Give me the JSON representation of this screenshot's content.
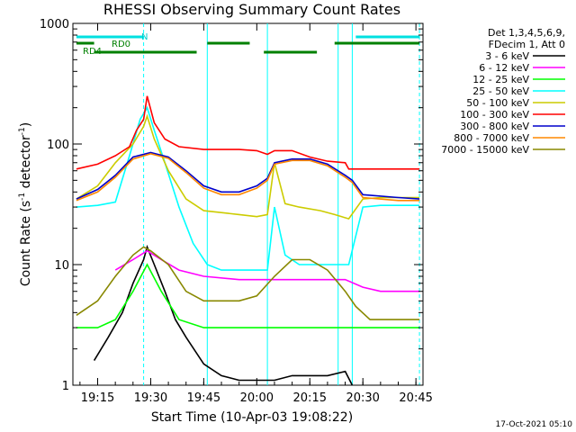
{
  "chart_data": {
    "type": "line",
    "title": "RHESSI Observing Summary Count Rates",
    "xlabel": "Start Time (10-Apr-03 19:08:22)",
    "ylabel": "Count Rate (s^-1 detector^-1)",
    "ylabel_main": "Count Rate (s",
    "ylabel_sup1": "-1",
    "ylabel_mid": " detector",
    "ylabel_sup2": "-1",
    "ylabel_end": ")",
    "y_scale": "log",
    "ylim": [
      1,
      1000
    ],
    "xlim": [
      "19:08",
      "20:47"
    ],
    "x_ticks": [
      "19:15",
      "19:30",
      "19:45",
      "20:00",
      "20:15",
      "20:30",
      "20:45"
    ],
    "y_ticks": [
      "1",
      "10",
      "100",
      "1000"
    ],
    "grid": false,
    "legend_position": "right",
    "legend_header": [
      "Det 1,3,4,5,6,9,",
      "FDecim 1, Att 0"
    ],
    "timestamp": "17-Oct-2021 05:10",
    "flag_labels": {
      "n": "N",
      "rd0": "RD0",
      "rd4": "RD4"
    },
    "series": [
      {
        "name": "3 - 6 keV",
        "color": "#000000",
        "x": [
          "19:14",
          "19:18",
          "19:22",
          "19:25",
          "19:28",
          "19:29",
          "19:31",
          "19:34",
          "19:37",
          "19:40",
          "19:45",
          "19:50",
          "19:55",
          "20:00",
          "20:05",
          "20:10",
          "20:15",
          "20:20",
          "20:25",
          "20:27"
        ],
        "y": [
          1.6,
          2.5,
          4,
          7,
          11,
          14,
          10,
          6,
          3.5,
          2.5,
          1.5,
          1.2,
          1.1,
          1.1,
          1.1,
          1.2,
          1.2,
          1.2,
          1.3,
          1.0
        ]
      },
      {
        "name": "6 - 12 keV",
        "color": "#ff00ff",
        "x": [
          "19:20",
          "19:25",
          "19:29",
          "19:33",
          "19:38",
          "19:45",
          "19:55",
          "20:00",
          "20:05",
          "20:10",
          "20:15",
          "20:20",
          "20:25",
          "20:30",
          "20:35",
          "20:40",
          "20:46"
        ],
        "y": [
          9,
          11,
          13,
          11,
          9,
          8,
          7.5,
          7.5,
          7.5,
          7.5,
          7.5,
          7.5,
          7.5,
          6.5,
          6,
          6,
          6
        ]
      },
      {
        "name": "12 - 25 keV",
        "color": "#00ff00",
        "x": [
          "19:09",
          "19:15",
          "19:20",
          "19:25",
          "19:29",
          "19:33",
          "19:38",
          "19:45",
          "19:55",
          "20:00",
          "20:05",
          "20:10",
          "20:15",
          "20:20",
          "20:25",
          "20:30",
          "20:35",
          "20:40",
          "20:46"
        ],
        "y": [
          3,
          3,
          3.5,
          6,
          10,
          6,
          3.5,
          3,
          3,
          3,
          3,
          3,
          3,
          3,
          3,
          3,
          3,
          3,
          3
        ]
      },
      {
        "name": "25 - 50 keV",
        "color": "#00ffff",
        "x": [
          "19:09",
          "19:15",
          "19:20",
          "19:24",
          "19:27",
          "19:29",
          "19:31",
          "19:34",
          "19:38",
          "19:42",
          "19:46",
          "19:50",
          "19:55",
          "20:00",
          "20:03",
          "20:05",
          "20:08",
          "20:12",
          "20:18",
          "20:22",
          "20:26",
          "20:30",
          "20:35",
          "20:40",
          "20:46"
        ],
        "y": [
          30,
          31,
          33,
          80,
          160,
          200,
          130,
          70,
          30,
          15,
          10,
          9,
          9,
          9,
          9,
          30,
          12,
          10,
          10,
          10,
          10,
          30,
          31,
          31,
          31
        ]
      },
      {
        "name": "50 - 100 keV",
        "color": "#cccc00",
        "x": [
          "19:09",
          "19:15",
          "19:20",
          "19:25",
          "19:28",
          "19:29",
          "19:31",
          "19:35",
          "19:40",
          "19:45",
          "19:55",
          "20:00",
          "20:03",
          "20:05",
          "20:08",
          "20:12",
          "20:18",
          "20:22",
          "20:26",
          "20:30",
          "20:35",
          "20:40",
          "20:46"
        ],
        "y": [
          35,
          45,
          70,
          100,
          140,
          170,
          110,
          60,
          35,
          28,
          26,
          25,
          26,
          70,
          32,
          30,
          28,
          26,
          24,
          35,
          36,
          36,
          36
        ]
      },
      {
        "name": "100 - 300 keV",
        "color": "#ff0000",
        "x": [
          "19:09",
          "19:15",
          "19:20",
          "19:24",
          "19:26",
          "19:28",
          "19:29",
          "19:31",
          "19:34",
          "19:38",
          "19:45",
          "19:55",
          "20:00",
          "20:03",
          "20:05",
          "20:10",
          "20:15",
          "20:20",
          "20:25",
          "20:26",
          "20:30",
          "20:40",
          "20:46"
        ],
        "y": [
          62,
          68,
          80,
          95,
          130,
          160,
          250,
          150,
          110,
          95,
          90,
          90,
          88,
          82,
          88,
          88,
          78,
          72,
          70,
          62,
          62,
          62,
          62
        ]
      },
      {
        "name": "300 - 800 keV",
        "color": "#0000cc",
        "x": [
          "19:09",
          "19:15",
          "19:20",
          "19:25",
          "19:30",
          "19:35",
          "19:40",
          "19:45",
          "19:50",
          "19:55",
          "20:00",
          "20:03",
          "20:05",
          "20:10",
          "20:15",
          "20:20",
          "20:25",
          "20:27",
          "20:30",
          "20:40",
          "20:46"
        ],
        "y": [
          35,
          42,
          55,
          78,
          85,
          78,
          60,
          45,
          40,
          40,
          45,
          52,
          70,
          75,
          75,
          68,
          55,
          50,
          38,
          36,
          35
        ]
      },
      {
        "name": "800 - 7000 keV",
        "color": "#ff8800",
        "x": [
          "19:09",
          "19:15",
          "19:20",
          "19:25",
          "19:30",
          "19:35",
          "19:40",
          "19:45",
          "19:50",
          "19:55",
          "20:00",
          "20:03",
          "20:05",
          "20:10",
          "20:15",
          "20:20",
          "20:25",
          "20:27",
          "20:30",
          "20:40",
          "20:46"
        ],
        "y": [
          34,
          40,
          53,
          75,
          83,
          76,
          58,
          43,
          38,
          38,
          43,
          50,
          68,
          73,
          73,
          66,
          53,
          48,
          36,
          34,
          34
        ]
      },
      {
        "name": "7000 - 15000 keV",
        "color": "#888800",
        "x": [
          "19:09",
          "19:15",
          "19:20",
          "19:25",
          "19:28",
          "19:30",
          "19:35",
          "19:40",
          "19:45",
          "19:50",
          "19:55",
          "20:00",
          "20:05",
          "20:10",
          "20:15",
          "20:20",
          "20:25",
          "20:28",
          "20:32",
          "20:40",
          "20:46"
        ],
        "y": [
          3.8,
          5,
          8,
          12,
          14,
          13,
          10,
          6,
          5,
          5,
          5,
          5.5,
          8,
          11,
          11,
          9,
          6,
          4.5,
          3.5,
          3.5,
          3.5
        ]
      }
    ]
  }
}
